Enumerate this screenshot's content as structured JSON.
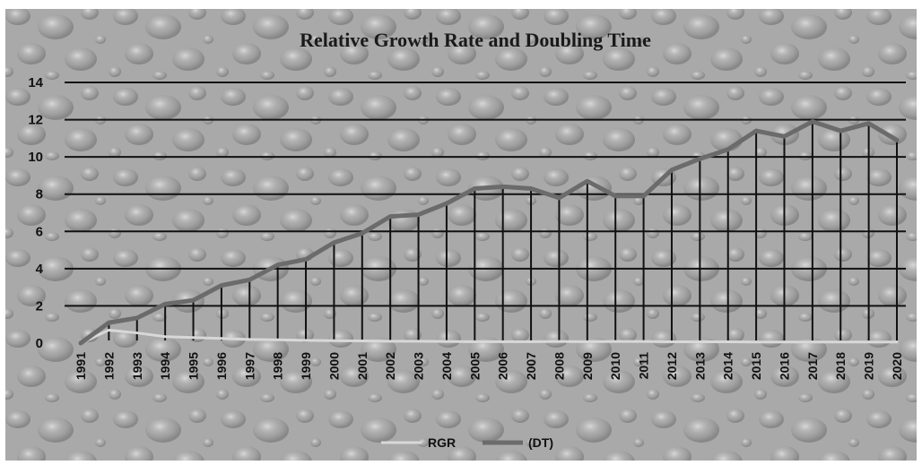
{
  "chart_data": {
    "type": "line",
    "title": "Relative Growth Rate and Doubling Time",
    "xlabel": "",
    "ylabel": "",
    "ylim": [
      0,
      14
    ],
    "yticks": [
      0,
      2,
      4,
      6,
      8,
      10,
      12,
      14
    ],
    "grid": true,
    "legend_position": "bottom",
    "x": [
      "1991",
      "1992",
      "1993",
      "1994",
      "1995",
      "1996",
      "1997",
      "1998",
      "1999",
      "2000",
      "2001",
      "2002",
      "2003",
      "2004",
      "2005",
      "2006",
      "2007",
      "2008",
      "2009",
      "2010",
      "2011",
      "2012",
      "2013",
      "2014",
      "2015",
      "2016",
      "2017",
      "2018",
      "2019",
      "2020"
    ],
    "series": [
      {
        "name": "RGR",
        "color": "#d8d8d8",
        "values": [
          0,
          0.7,
          0.55,
          0.35,
          0.3,
          0.25,
          0.2,
          0.18,
          0.15,
          0.13,
          0.12,
          0.1,
          0.1,
          0.09,
          0.08,
          0.08,
          0.08,
          0.09,
          0.08,
          0.09,
          0.09,
          0.07,
          0.07,
          0.07,
          0.06,
          0.06,
          0.06,
          0.06,
          0.06,
          0.06
        ]
      },
      {
        "name": "(DT)",
        "color": "#6b6b6b",
        "values": [
          0,
          1.1,
          1.35,
          2.1,
          2.3,
          3.1,
          3.4,
          4.2,
          4.5,
          5.4,
          5.9,
          6.8,
          6.9,
          7.5,
          8.3,
          8.4,
          8.3,
          7.8,
          8.7,
          7.9,
          7.9,
          9.3,
          9.9,
          10.4,
          11.4,
          11.1,
          11.9,
          11.4,
          11.8,
          10.9
        ]
      }
    ]
  }
}
